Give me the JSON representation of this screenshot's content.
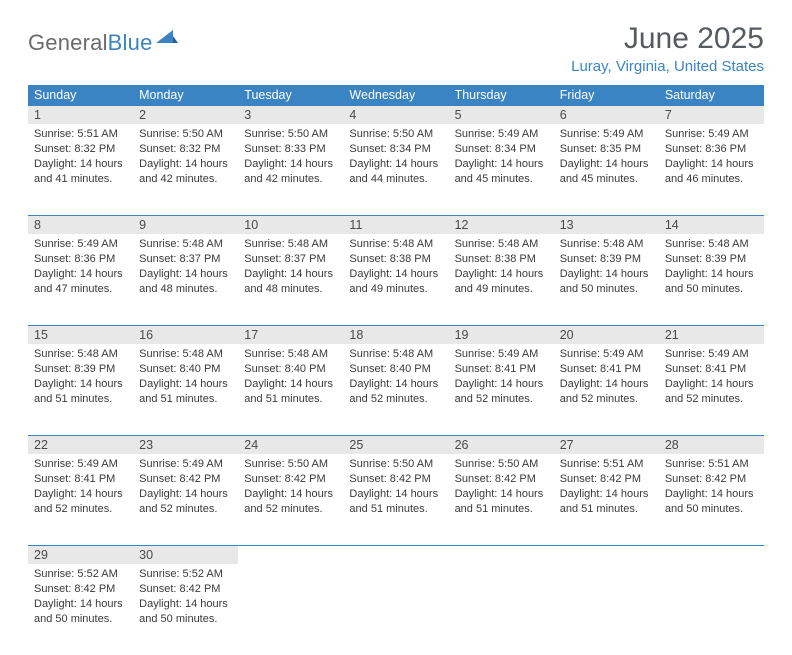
{
  "logo": {
    "word1": "General",
    "word2": "Blue"
  },
  "title": "June 2025",
  "subtitle": "Luray, Virginia, United States",
  "headers": [
    "Sunday",
    "Monday",
    "Tuesday",
    "Wednesday",
    "Thursday",
    "Friday",
    "Saturday"
  ],
  "colors": {
    "header_bg": "#3b84c4",
    "header_text": "#ffffff",
    "daynum_bg": "#e8e8e8",
    "border": "#3b84c4",
    "text": "#3a3a3a",
    "title_text": "#555b61",
    "subtitle_text": "#3b84c4"
  },
  "weeks": [
    [
      {
        "n": "1",
        "sr": "5:51 AM",
        "ss": "8:32 PM",
        "dl": "14 hours and 41 minutes."
      },
      {
        "n": "2",
        "sr": "5:50 AM",
        "ss": "8:32 PM",
        "dl": "14 hours and 42 minutes."
      },
      {
        "n": "3",
        "sr": "5:50 AM",
        "ss": "8:33 PM",
        "dl": "14 hours and 42 minutes."
      },
      {
        "n": "4",
        "sr": "5:50 AM",
        "ss": "8:34 PM",
        "dl": "14 hours and 44 minutes."
      },
      {
        "n": "5",
        "sr": "5:49 AM",
        "ss": "8:34 PM",
        "dl": "14 hours and 45 minutes."
      },
      {
        "n": "6",
        "sr": "5:49 AM",
        "ss": "8:35 PM",
        "dl": "14 hours and 45 minutes."
      },
      {
        "n": "7",
        "sr": "5:49 AM",
        "ss": "8:36 PM",
        "dl": "14 hours and 46 minutes."
      }
    ],
    [
      {
        "n": "8",
        "sr": "5:49 AM",
        "ss": "8:36 PM",
        "dl": "14 hours and 47 minutes."
      },
      {
        "n": "9",
        "sr": "5:48 AM",
        "ss": "8:37 PM",
        "dl": "14 hours and 48 minutes."
      },
      {
        "n": "10",
        "sr": "5:48 AM",
        "ss": "8:37 PM",
        "dl": "14 hours and 48 minutes."
      },
      {
        "n": "11",
        "sr": "5:48 AM",
        "ss": "8:38 PM",
        "dl": "14 hours and 49 minutes."
      },
      {
        "n": "12",
        "sr": "5:48 AM",
        "ss": "8:38 PM",
        "dl": "14 hours and 49 minutes."
      },
      {
        "n": "13",
        "sr": "5:48 AM",
        "ss": "8:39 PM",
        "dl": "14 hours and 50 minutes."
      },
      {
        "n": "14",
        "sr": "5:48 AM",
        "ss": "8:39 PM",
        "dl": "14 hours and 50 minutes."
      }
    ],
    [
      {
        "n": "15",
        "sr": "5:48 AM",
        "ss": "8:39 PM",
        "dl": "14 hours and 51 minutes."
      },
      {
        "n": "16",
        "sr": "5:48 AM",
        "ss": "8:40 PM",
        "dl": "14 hours and 51 minutes."
      },
      {
        "n": "17",
        "sr": "5:48 AM",
        "ss": "8:40 PM",
        "dl": "14 hours and 51 minutes."
      },
      {
        "n": "18",
        "sr": "5:48 AM",
        "ss": "8:40 PM",
        "dl": "14 hours and 52 minutes."
      },
      {
        "n": "19",
        "sr": "5:49 AM",
        "ss": "8:41 PM",
        "dl": "14 hours and 52 minutes."
      },
      {
        "n": "20",
        "sr": "5:49 AM",
        "ss": "8:41 PM",
        "dl": "14 hours and 52 minutes."
      },
      {
        "n": "21",
        "sr": "5:49 AM",
        "ss": "8:41 PM",
        "dl": "14 hours and 52 minutes."
      }
    ],
    [
      {
        "n": "22",
        "sr": "5:49 AM",
        "ss": "8:41 PM",
        "dl": "14 hours and 52 minutes."
      },
      {
        "n": "23",
        "sr": "5:49 AM",
        "ss": "8:42 PM",
        "dl": "14 hours and 52 minutes."
      },
      {
        "n": "24",
        "sr": "5:50 AM",
        "ss": "8:42 PM",
        "dl": "14 hours and 52 minutes."
      },
      {
        "n": "25",
        "sr": "5:50 AM",
        "ss": "8:42 PM",
        "dl": "14 hours and 51 minutes."
      },
      {
        "n": "26",
        "sr": "5:50 AM",
        "ss": "8:42 PM",
        "dl": "14 hours and 51 minutes."
      },
      {
        "n": "27",
        "sr": "5:51 AM",
        "ss": "8:42 PM",
        "dl": "14 hours and 51 minutes."
      },
      {
        "n": "28",
        "sr": "5:51 AM",
        "ss": "8:42 PM",
        "dl": "14 hours and 50 minutes."
      }
    ],
    [
      {
        "n": "29",
        "sr": "5:52 AM",
        "ss": "8:42 PM",
        "dl": "14 hours and 50 minutes."
      },
      {
        "n": "30",
        "sr": "5:52 AM",
        "ss": "8:42 PM",
        "dl": "14 hours and 50 minutes."
      },
      null,
      null,
      null,
      null,
      null
    ]
  ],
  "labels": {
    "sunrise": "Sunrise: ",
    "sunset": "Sunset: ",
    "daylight": "Daylight: "
  }
}
